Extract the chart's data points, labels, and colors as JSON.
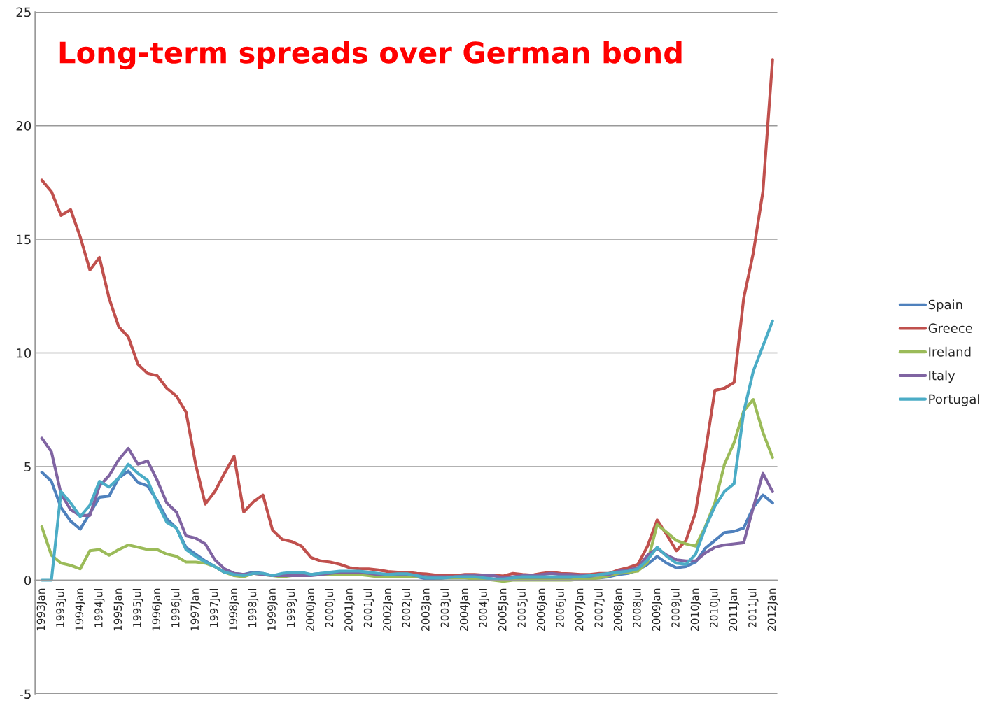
{
  "chart_data": {
    "type": "line",
    "title": "Long-term spreads over German bond",
    "categories": [
      "1993Jan",
      null,
      "1993Jul",
      null,
      "1994Jan",
      null,
      "1994Jul",
      null,
      "1995Jan",
      null,
      "1995Jul",
      null,
      "1996Jan",
      null,
      "1996Jul",
      null,
      "1997Jan",
      null,
      "1997Jul",
      null,
      "1998Jan",
      null,
      "1998Jul",
      null,
      "1999Jan",
      null,
      "1999Jul",
      null,
      "2000Jan",
      null,
      "2000Jul",
      null,
      "2001Jan",
      null,
      "2001Jul",
      null,
      "2002Jan",
      null,
      "2002Jul",
      null,
      "2003Jan",
      null,
      "2003Jul",
      null,
      "2004Jan",
      null,
      "2004Jul",
      null,
      "2005Jan",
      null,
      "2005Jul",
      null,
      "2006Jan",
      null,
      "2006Jul",
      null,
      "2007Jan",
      null,
      "2007Jul",
      null,
      "2008Jan",
      null,
      "2008Jul",
      null,
      "2009Jan",
      null,
      "2009Jul",
      null,
      "2010Jan",
      null,
      "2010Jul",
      null,
      "2011Jan",
      null,
      "2011Jul",
      null,
      "2012Jan"
    ],
    "series": [
      {
        "name": "Spain",
        "color": "#4f81bd",
        "values": [
          4.75,
          4.35,
          3.2,
          2.6,
          2.25,
          2.95,
          3.65,
          3.7,
          4.5,
          4.8,
          4.3,
          4.15,
          3.5,
          2.7,
          2.3,
          1.45,
          1.15,
          0.85,
          0.6,
          0.35,
          0.3,
          0.25,
          0.35,
          0.3,
          0.2,
          0.25,
          0.3,
          0.3,
          0.25,
          0.3,
          0.3,
          0.3,
          0.3,
          0.3,
          0.25,
          0.2,
          0.15,
          0.2,
          0.2,
          0.15,
          0.05,
          0.05,
          0.1,
          0.1,
          0.1,
          0.1,
          0.1,
          0.05,
          0.0,
          0.05,
          0.05,
          0.05,
          0.05,
          0.05,
          0.05,
          0.05,
          0.05,
          0.1,
          0.1,
          0.15,
          0.25,
          0.3,
          0.45,
          0.7,
          1.05,
          0.75,
          0.55,
          0.6,
          0.8,
          1.4,
          1.75,
          2.1,
          2.15,
          2.3,
          3.2,
          3.75,
          3.4
        ]
      },
      {
        "name": "Greece",
        "color": "#c0504d",
        "values": [
          17.6,
          17.1,
          16.05,
          16.3,
          15.1,
          13.65,
          14.2,
          12.4,
          11.15,
          10.7,
          9.5,
          9.1,
          9.0,
          8.45,
          8.1,
          7.4,
          5.1,
          3.35,
          3.9,
          4.7,
          5.45,
          3.0,
          3.45,
          3.75,
          2.2,
          1.8,
          1.7,
          1.5,
          1.0,
          0.85,
          0.8,
          0.7,
          0.55,
          0.5,
          0.5,
          0.45,
          0.38,
          0.35,
          0.35,
          0.3,
          0.27,
          0.22,
          0.2,
          0.2,
          0.25,
          0.25,
          0.22,
          0.22,
          0.18,
          0.3,
          0.25,
          0.22,
          0.3,
          0.35,
          0.3,
          0.28,
          0.25,
          0.25,
          0.3,
          0.3,
          0.45,
          0.55,
          0.7,
          1.5,
          2.65,
          2.0,
          1.3,
          1.75,
          3.0,
          5.6,
          8.35,
          8.45,
          8.7,
          12.4,
          14.4,
          17.1,
          22.9
        ]
      },
      {
        "name": "Ireland",
        "color": "#9bbb59",
        "values": [
          2.35,
          1.1,
          0.75,
          0.65,
          0.5,
          1.3,
          1.35,
          1.1,
          1.35,
          1.55,
          1.45,
          1.35,
          1.35,
          1.15,
          1.05,
          0.8,
          0.8,
          0.75,
          0.6,
          0.35,
          0.2,
          0.15,
          0.3,
          0.25,
          0.2,
          0.15,
          0.2,
          0.2,
          0.25,
          0.25,
          0.25,
          0.25,
          0.25,
          0.25,
          0.2,
          0.15,
          0.15,
          0.15,
          0.15,
          0.15,
          0.15,
          0.1,
          0.1,
          0.1,
          0.1,
          0.05,
          0.05,
          0.0,
          -0.05,
          0.0,
          0.0,
          0.0,
          0.0,
          0.0,
          0.0,
          0.0,
          0.05,
          0.05,
          0.1,
          0.2,
          0.3,
          0.35,
          0.4,
          0.8,
          2.45,
          2.1,
          1.75,
          1.6,
          1.5,
          2.35,
          3.4,
          5.1,
          6.05,
          7.45,
          7.95,
          6.5,
          5.4
        ]
      },
      {
        "name": "Italy",
        "color": "#8064a2",
        "values": [
          6.25,
          5.65,
          3.8,
          3.1,
          2.85,
          2.85,
          4.15,
          4.6,
          5.3,
          5.8,
          5.1,
          5.25,
          4.4,
          3.4,
          3.0,
          1.95,
          1.85,
          1.6,
          0.9,
          0.5,
          0.3,
          0.25,
          0.3,
          0.25,
          0.2,
          0.2,
          0.2,
          0.2,
          0.2,
          0.25,
          0.3,
          0.35,
          0.35,
          0.35,
          0.3,
          0.25,
          0.25,
          0.25,
          0.25,
          0.2,
          0.15,
          0.15,
          0.15,
          0.15,
          0.2,
          0.2,
          0.2,
          0.2,
          0.1,
          0.15,
          0.2,
          0.2,
          0.25,
          0.3,
          0.25,
          0.25,
          0.22,
          0.2,
          0.25,
          0.25,
          0.4,
          0.45,
          0.55,
          1.1,
          1.4,
          1.1,
          0.9,
          0.85,
          0.85,
          1.2,
          1.45,
          1.55,
          1.6,
          1.65,
          3.2,
          4.7,
          3.9
        ]
      },
      {
        "name": "Portugal",
        "color": "#4bacc6",
        "values": [
          0,
          0,
          3.9,
          3.4,
          2.8,
          3.3,
          4.35,
          4.1,
          4.5,
          5.1,
          4.7,
          4.4,
          3.4,
          2.55,
          2.3,
          1.35,
          1.05,
          0.8,
          0.6,
          0.35,
          0.25,
          0.2,
          0.3,
          0.3,
          0.2,
          0.3,
          0.35,
          0.35,
          0.25,
          0.3,
          0.35,
          0.4,
          0.4,
          0.4,
          0.35,
          0.3,
          0.25,
          0.28,
          0.28,
          0.2,
          0.1,
          0.1,
          0.1,
          0.15,
          0.15,
          0.15,
          0.1,
          0.05,
          0.05,
          0.1,
          0.15,
          0.15,
          0.15,
          0.15,
          0.15,
          0.15,
          0.15,
          0.2,
          0.25,
          0.3,
          0.35,
          0.4,
          0.5,
          0.9,
          1.45,
          1.05,
          0.75,
          0.7,
          1.15,
          2.3,
          3.25,
          3.9,
          4.25,
          7.4,
          9.2,
          10.3,
          11.4
        ]
      }
    ],
    "ylim": [
      -5,
      25
    ],
    "yticks": [
      -5,
      0,
      5,
      10,
      15,
      20,
      25
    ],
    "grid": "y",
    "legend": "right",
    "marker": "none",
    "line_style": "solid"
  }
}
